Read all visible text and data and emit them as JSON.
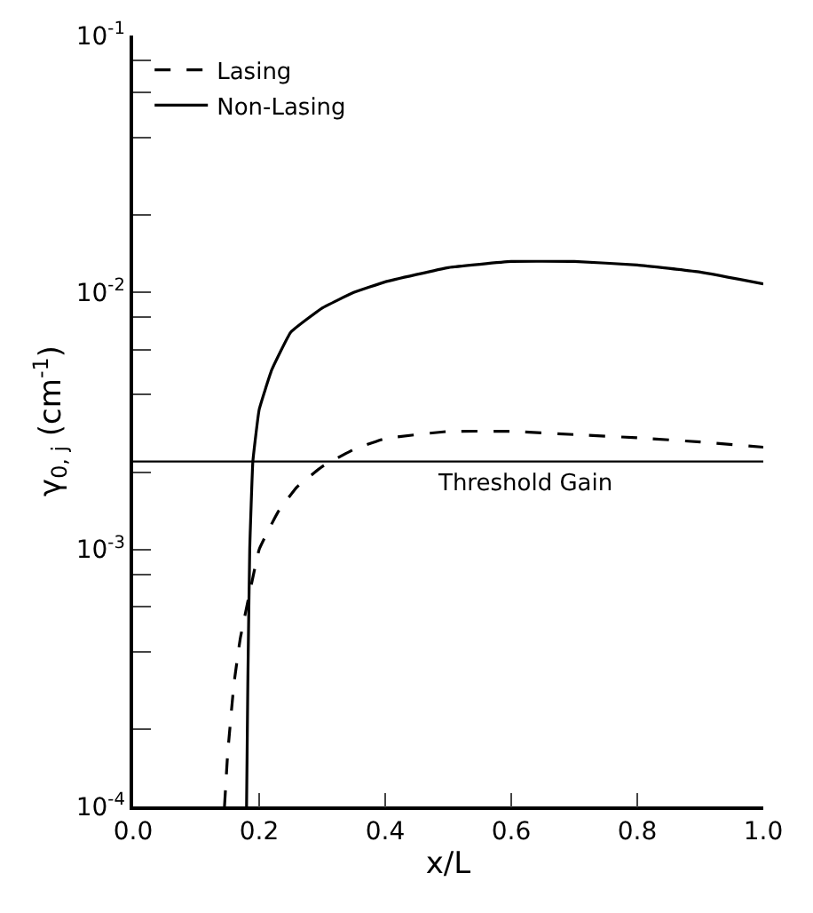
{
  "chart_data": {
    "type": "line",
    "xlabel": "x/L",
    "ylabel": "γ$_{0, j}$ (cm$^{-1}$)",
    "log": "y",
    "legend": "top left",
    "marker": "none",
    "xlim": [
      0,
      1.0
    ],
    "xticks": [
      {
        "value": 0,
        "label": "0.0"
      },
      0.2,
      0.4,
      0.6,
      0.8,
      {
        "value": 1.0,
        "label": "1.0"
      }
    ],
    "ylim": [
      0.0001,
      0.1
    ],
    "yticks": [
      {
        "value": 0.0001,
        "label": "10$^{-4}$"
      },
      {
        "value": 0.0002,
        "label": null
      },
      {
        "value": 0.0004,
        "label": null
      },
      {
        "value": 0.0006,
        "label": null
      },
      {
        "value": 0.0008,
        "label": null
      },
      {
        "value": 0.001,
        "label": "10$^{-3}$"
      },
      {
        "value": 0.002,
        "label": null
      },
      {
        "value": 0.004,
        "label": null
      },
      {
        "value": 0.006,
        "label": null
      },
      {
        "value": 0.008,
        "label": null
      },
      {
        "value": 0.01,
        "label": "10$^{-2}$"
      },
      {
        "value": 0.02,
        "label": null
      },
      {
        "value": 0.04,
        "label": null
      },
      {
        "value": 0.06,
        "label": null
      },
      {
        "value": 0.08,
        "label": null
      },
      {
        "value": 0.1,
        "label": "10$^{-1}$"
      }
    ],
    "ref_lines": [
      {
        "axis": "y",
        "value": 0.0022,
        "label": "Threshold Gain",
        "color": "#000000",
        "line_style": "solid"
      }
    ],
    "series": [
      {
        "name": "Lasing",
        "color": "#000000",
        "line_style": "dashed",
        "x": [
          0.145,
          0.15,
          0.16,
          0.17,
          0.185,
          0.2,
          0.23,
          0.26,
          0.3,
          0.35,
          0.4,
          0.5,
          0.6,
          0.7,
          0.8,
          0.9,
          1.0
        ],
        "values": [
          0.0001,
          0.00016,
          0.0003,
          0.00045,
          0.00068,
          0.001,
          0.0014,
          0.00175,
          0.0021,
          0.00245,
          0.0027,
          0.00288,
          0.00288,
          0.0028,
          0.00272,
          0.00262,
          0.0025
        ]
      },
      {
        "name": "Non-Lasing",
        "color": "#000000",
        "line_style": "solid",
        "x": [
          0.18,
          0.182,
          0.185,
          0.19,
          0.2,
          0.22,
          0.25,
          0.3,
          0.35,
          0.4,
          0.5,
          0.6,
          0.7,
          0.8,
          0.9,
          1.0
        ],
        "values": [
          0.0001,
          0.0003,
          0.001,
          0.0022,
          0.0035,
          0.005,
          0.007,
          0.0087,
          0.01,
          0.011,
          0.0125,
          0.0132,
          0.0132,
          0.0128,
          0.012,
          0.0108
        ]
      }
    ]
  }
}
